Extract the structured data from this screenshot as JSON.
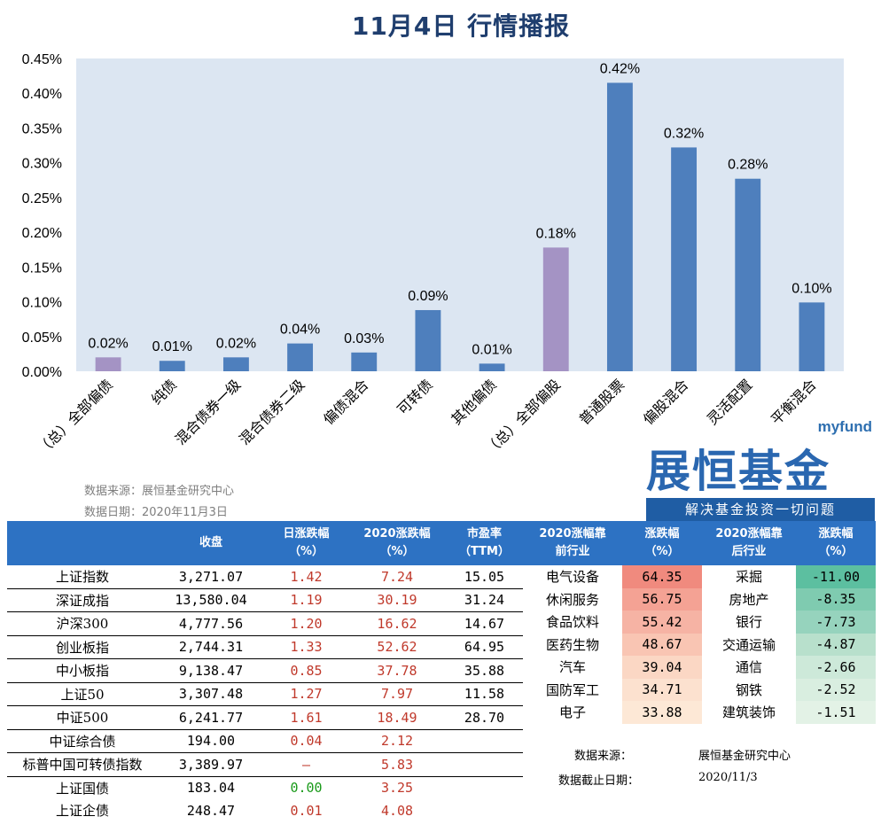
{
  "title": "11月4日  行情播报",
  "chart_data": {
    "type": "bar",
    "categories": [
      "（总）全部偏债",
      "纯债",
      "混合债券一级",
      "混合债券二级",
      "偏债混合",
      "可转债",
      "其他偏债",
      "（总）全部偏股",
      "普通股票",
      "偏股混合",
      "灵活配置",
      "平衡混合"
    ],
    "values": [
      0.02,
      0.015,
      0.02,
      0.04,
      0.027,
      0.088,
      0.011,
      0.178,
      0.415,
      0.322,
      0.277,
      0.099
    ],
    "data_labels": [
      "0.02%",
      "0.01%",
      "0.02%",
      "0.04%",
      "0.03%",
      "0.09%",
      "0.01%",
      "0.18%",
      "0.42%",
      "0.32%",
      "0.28%",
      "0.10%"
    ],
    "highlight_indices": [
      0,
      7
    ],
    "colors": {
      "bar": "#4e7fbd",
      "highlight": "#a493c4",
      "plot_bg": "#dce6f2"
    },
    "ylim": [
      0,
      0.45
    ],
    "yticks": [
      "0.00%",
      "0.05%",
      "0.10%",
      "0.15%",
      "0.20%",
      "0.25%",
      "0.30%",
      "0.35%",
      "0.40%",
      "0.45%"
    ]
  },
  "chart_source": {
    "line1": "数据来源：展恒基金研究中心",
    "line2": "数据日期：2020年11月3日"
  },
  "logo": {
    "myfund": "myfund",
    "name": "展恒基金",
    "slogan": "解决基金投资一切问题"
  },
  "left_table": {
    "headers": [
      "",
      "收盘",
      "日涨跌幅\n（%）",
      "2020涨跌幅\n（%）",
      "市盈率\n（TTM）"
    ],
    "rows": [
      {
        "name": "上证指数",
        "close": "3,271.07",
        "day": "1.42",
        "year": "7.24",
        "pe": "15.05",
        "day_color": "red"
      },
      {
        "name": "深证成指",
        "close": "13,580.04",
        "day": "1.19",
        "year": "30.19",
        "pe": "31.24",
        "day_color": "red"
      },
      {
        "name": "沪深300",
        "close": "4,777.56",
        "day": "1.20",
        "year": "16.62",
        "pe": "14.67",
        "day_color": "red"
      },
      {
        "name": "创业板指",
        "close": "2,744.31",
        "day": "1.33",
        "year": "52.62",
        "pe": "64.95",
        "day_color": "red"
      },
      {
        "name": "中小板指",
        "close": "9,138.47",
        "day": "0.85",
        "year": "37.78",
        "pe": "35.88",
        "day_color": "red"
      },
      {
        "name": "上证50",
        "close": "3,307.48",
        "day": "1.27",
        "year": "7.97",
        "pe": "11.58",
        "day_color": "red"
      },
      {
        "name": "中证500",
        "close": "6,241.77",
        "day": "1.61",
        "year": "18.49",
        "pe": "28.70",
        "day_color": "red"
      },
      {
        "name": "中证综合债",
        "close": "194.00",
        "day": "0.04",
        "year": "2.12",
        "pe": "",
        "day_color": "red"
      },
      {
        "name": "标普中国可转债指数",
        "close": "3,389.97",
        "day": "–",
        "year": "5.83",
        "pe": "",
        "day_color": "red"
      },
      {
        "name": "上证国债",
        "close": "183.04",
        "day": "0.00",
        "year": "3.25",
        "pe": "",
        "day_color": "green"
      },
      {
        "name": "上证企债",
        "close": "248.47",
        "day": "0.01",
        "year": "4.08",
        "pe": "",
        "day_color": "red"
      }
    ]
  },
  "right_table": {
    "headers": [
      "2020涨幅靠\n前行业",
      "涨跌幅\n（%）",
      "2020涨幅靠\n后行业",
      "涨跌幅\n（%）"
    ],
    "rows": [
      {
        "top": "电气设备",
        "top_chg": "64.35",
        "bottom": "采掘",
        "bottom_chg": "-11.00"
      },
      {
        "top": "休闲服务",
        "top_chg": "56.75",
        "bottom": "房地产",
        "bottom_chg": "-8.35"
      },
      {
        "top": "食品饮料",
        "top_chg": "55.42",
        "bottom": "银行",
        "bottom_chg": "-7.73"
      },
      {
        "top": "医药生物",
        "top_chg": "48.67",
        "bottom": "交通运输",
        "bottom_chg": "-4.87"
      },
      {
        "top": "汽车",
        "top_chg": "39.04",
        "bottom": "通信",
        "bottom_chg": "-2.66"
      },
      {
        "top": "国防军工",
        "top_chg": "34.71",
        "bottom": "钢铁",
        "bottom_chg": "-2.52"
      },
      {
        "top": "电子",
        "top_chg": "33.88",
        "bottom": "建筑装饰",
        "bottom_chg": "-1.51"
      }
    ],
    "top_colors": [
      "#f08a7e",
      "#f4a294",
      "#f6b3a4",
      "#f9c5b3",
      "#fbd7c4",
      "#fce1cf",
      "#fde8d6"
    ],
    "bottom_colors": [
      "#5cbfa0",
      "#7fcbb0",
      "#96d3bd",
      "#b8e0cc",
      "#cde9d9",
      "#d9eee0",
      "#e3f2e6"
    ],
    "note1_label": "数据来源：",
    "note1_value": "展恒基金研究中心",
    "note2_label": "数据截止日期：",
    "note2_value": "2020/11/3"
  }
}
